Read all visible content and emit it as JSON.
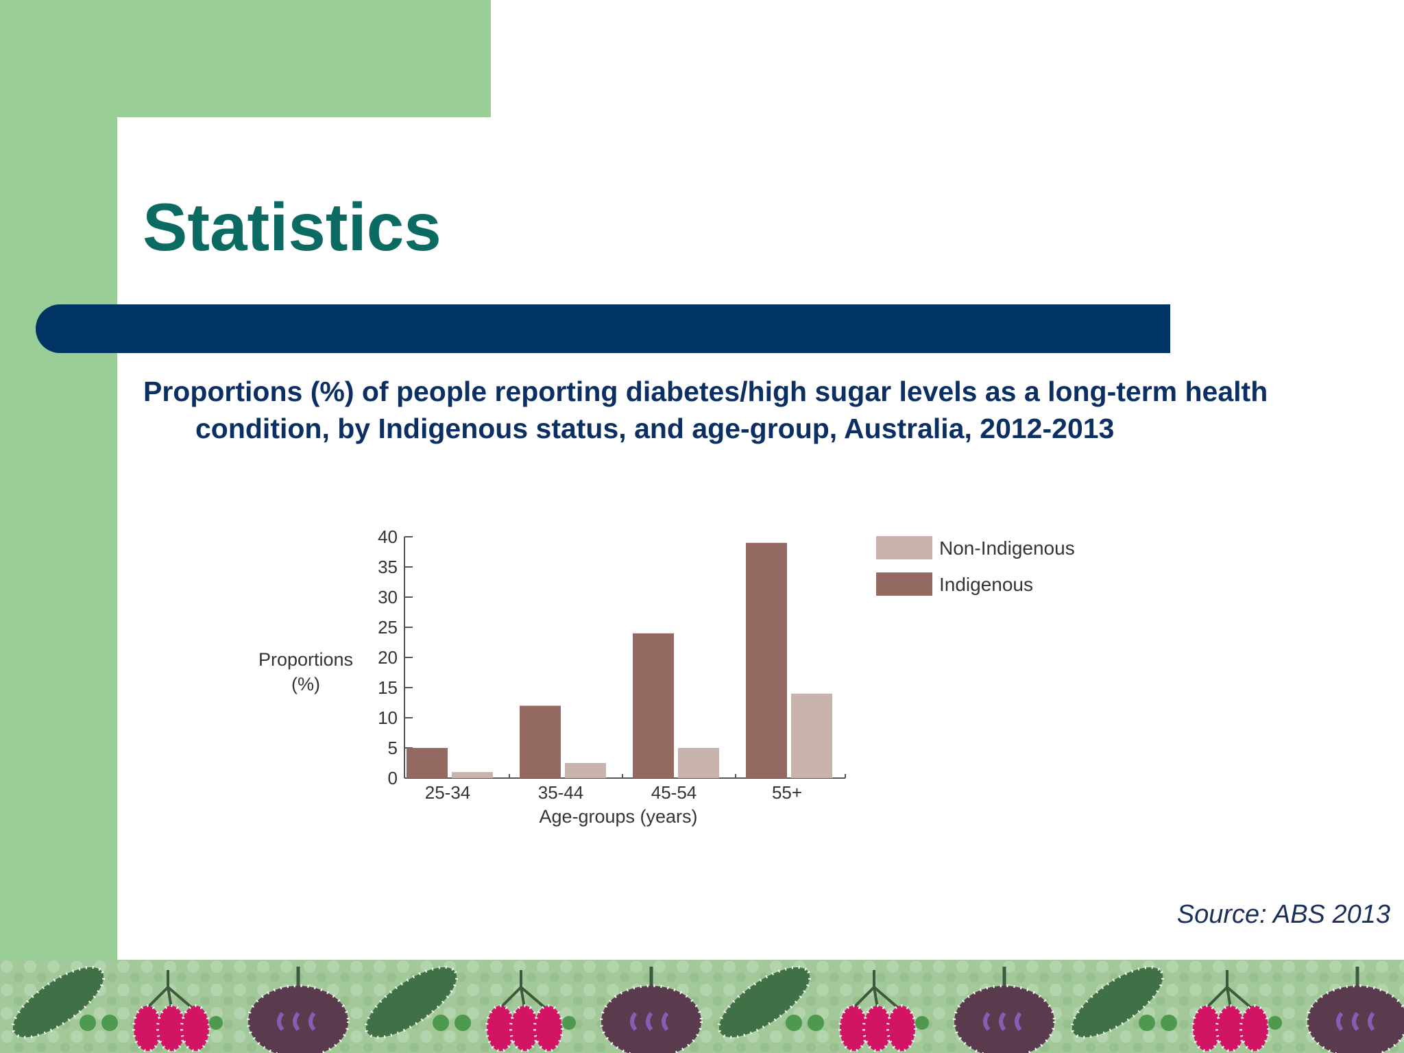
{
  "slide": {
    "title": "Statistics",
    "subtitle": "Proportions (%) of people reporting diabetes/high sugar levels as a long-term health condition, by Indigenous status, and age-group, Australia, 2012-2013",
    "source": "Source: ABS 2013"
  },
  "colors": {
    "green": "#9ace97",
    "title": "#0b6b63",
    "navy": "#003366",
    "indigenous": "#946962",
    "non_indigenous": "#c9b3ad"
  },
  "chart_data": {
    "type": "bar",
    "categories": [
      "25-34",
      "35-44",
      "45-54",
      "55+"
    ],
    "series": [
      {
        "name": "Indigenous",
        "values": [
          5,
          12,
          24,
          39
        ]
      },
      {
        "name": "Non-Indigenous",
        "values": [
          1,
          2.5,
          5,
          14
        ]
      }
    ],
    "legend_order": [
      "Non-Indigenous",
      "Indigenous"
    ],
    "xlabel": "Age-groups (years)",
    "ylabel_lines": [
      "Proportions",
      "(%)"
    ],
    "ylim": [
      0,
      40
    ],
    "yticks": [
      0,
      5,
      10,
      15,
      20,
      25,
      30,
      35,
      40
    ],
    "grid": false,
    "legend_position": "top-right"
  }
}
